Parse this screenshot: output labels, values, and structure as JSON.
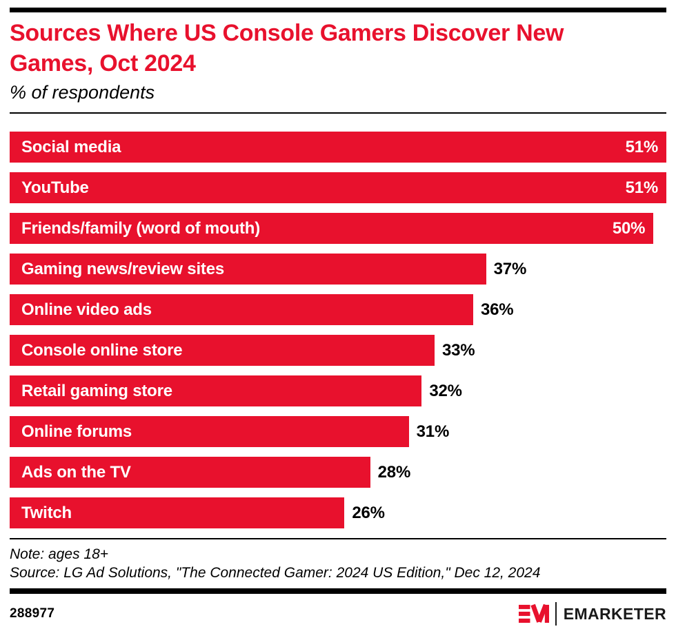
{
  "header": {
    "title": "Sources Where US Console Gamers Discover New Games, Oct 2024",
    "subtitle": "% of respondents"
  },
  "chart_data": {
    "type": "bar",
    "orientation": "horizontal",
    "title": "Sources Where US Console Gamers Discover New Games, Oct 2024",
    "subtitle": "% of respondents",
    "categories": [
      "Social media",
      "YouTube",
      "Friends/family (word of mouth)",
      "Gaming news/review sites",
      "Online video ads",
      "Console online store",
      "Retail gaming store",
      "Online forums",
      "Ads on the TV",
      "Twitch"
    ],
    "values": [
      51,
      51,
      50,
      37,
      36,
      33,
      32,
      31,
      28,
      26
    ],
    "value_suffix": "%",
    "xlim": [
      0,
      51
    ],
    "bar_color": "#e8112d",
    "value_label_inside_color": "#ffffff",
    "value_label_outside_color": "#000000",
    "grid": false,
    "legend": false
  },
  "footer": {
    "note": "Note: ages 18+",
    "source": "Source: LG Ad Solutions, \"The Connected Gamer: 2024 US Edition,\" Dec 12, 2024",
    "chart_id": "288977",
    "brand": "EMARKETER"
  },
  "colors": {
    "accent_red": "#e8112d",
    "rule_black": "#000000"
  }
}
